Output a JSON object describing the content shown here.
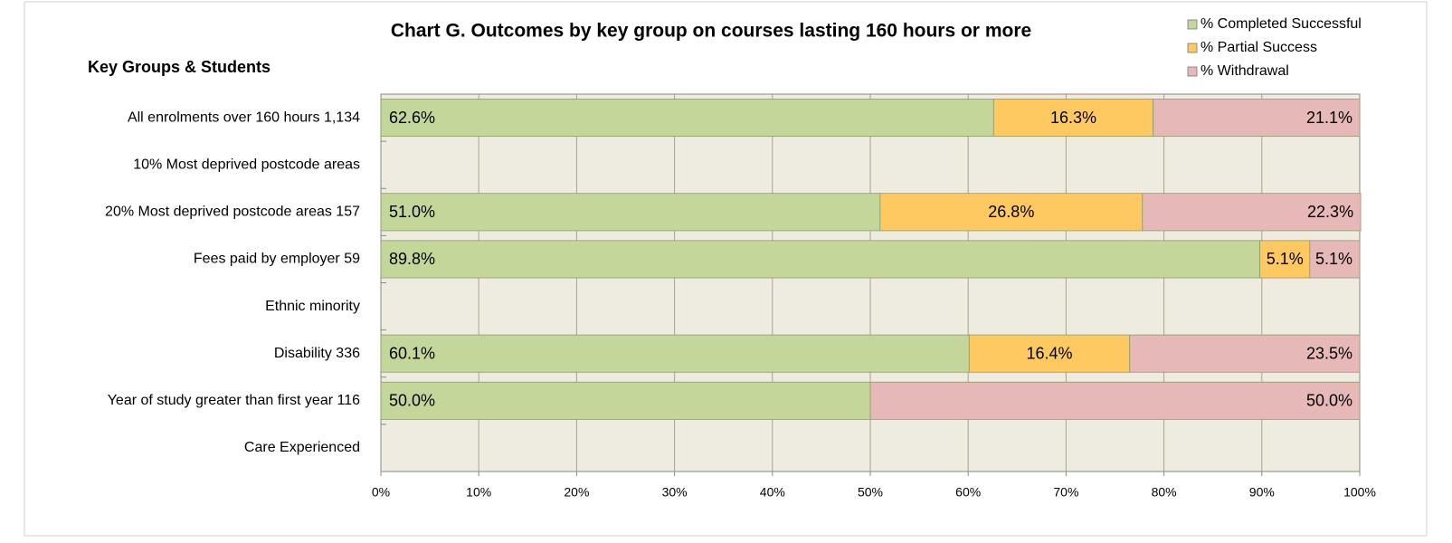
{
  "chart_data": {
    "type": "stacked_bar_horizontal",
    "title": "Chart G. Outcomes by key group on courses lasting 160 hours or more",
    "y_label": "Key Groups & Students",
    "categories": [
      "All enrolments over 160 hours  1,134",
      "10% Most deprived postcode areas",
      "20% Most deprived postcode areas  157",
      "Fees paid by employer  59",
      "Ethnic minority",
      "Disability  336",
      "Year of study greater than first year  116",
      "Care Experienced"
    ],
    "series": [
      {
        "name": "% Completed Successful",
        "color": "#c4d79b",
        "values": [
          62.6,
          null,
          51.0,
          89.8,
          null,
          60.1,
          50.0,
          null
        ],
        "value_labels": [
          "62.6%",
          null,
          "51.0%",
          "89.8%",
          null,
          "60.1%",
          "50.0%",
          null
        ]
      },
      {
        "name": "% Partial Success",
        "color": "#ffc962",
        "values": [
          16.3,
          null,
          26.8,
          5.1,
          null,
          16.4,
          null,
          null
        ],
        "value_labels": [
          "16.3%",
          null,
          "26.8%",
          "5.1%",
          null,
          "16.4%",
          null,
          null
        ]
      },
      {
        "name": "% Withdrawal",
        "color": "#e6b8b7",
        "values": [
          21.1,
          null,
          22.3,
          5.1,
          null,
          23.5,
          50.0,
          null
        ],
        "value_labels": [
          "21.1%",
          null,
          "22.3%",
          "5.1%",
          null,
          "23.5%",
          "50.0%",
          null
        ]
      }
    ],
    "xlim": [
      0,
      100
    ],
    "xticks": [
      {
        "value": 0,
        "label": "0%"
      },
      {
        "value": 10,
        "label": "10%"
      },
      {
        "value": 20,
        "label": "20%"
      },
      {
        "value": 30,
        "label": "30%"
      },
      {
        "value": 40,
        "label": "40%"
      },
      {
        "value": 50,
        "label": "50%"
      },
      {
        "value": 60,
        "label": "60%"
      },
      {
        "value": 70,
        "label": "70%"
      },
      {
        "value": 80,
        "label": "80%"
      },
      {
        "value": 90,
        "label": "90%"
      },
      {
        "value": 100,
        "label": "100%"
      }
    ],
    "grid": true,
    "legend": "top-right"
  }
}
